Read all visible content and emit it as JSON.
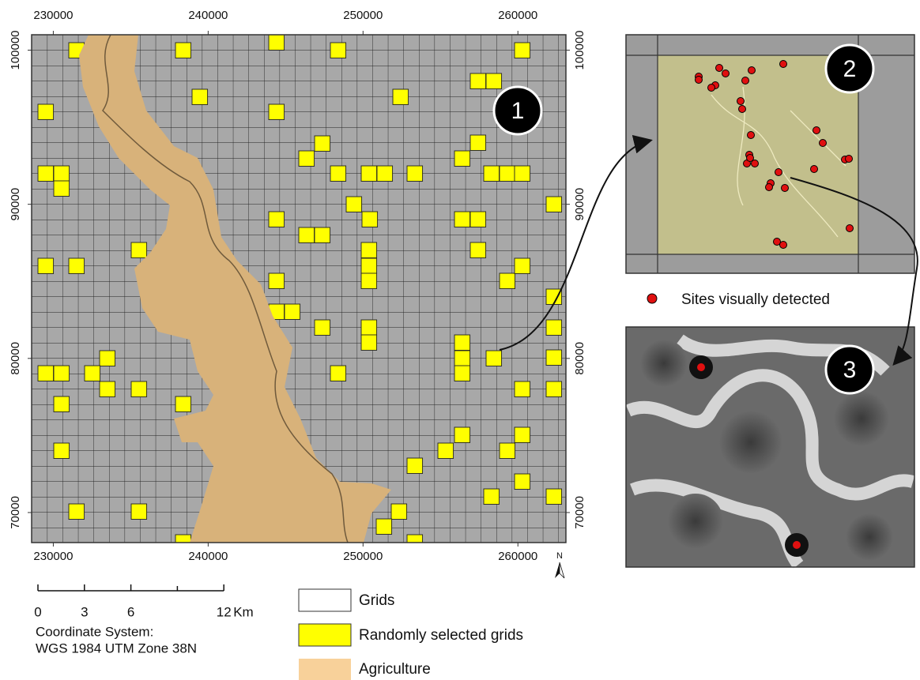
{
  "map": {
    "xlim": [
      228600,
      263100
    ],
    "ylim": [
      68050,
      101000
    ],
    "xticks": [
      230000,
      240000,
      250000,
      260000
    ],
    "yticks": [
      70000,
      80000,
      90000,
      100000
    ],
    "north": "N",
    "panels": [
      "1",
      "2",
      "3"
    ]
  },
  "scale_bar": {
    "ticks": [
      0,
      3,
      6,
      12
    ],
    "unit": "Km"
  },
  "coordinate_system": [
    "Coordinate System:",
    "WGS 1984 UTM Zone 38N"
  ],
  "legend": [
    "Grids",
    "Randomly selected grids",
    "Agriculture"
  ],
  "inset_legend": "Sites visually detected"
}
